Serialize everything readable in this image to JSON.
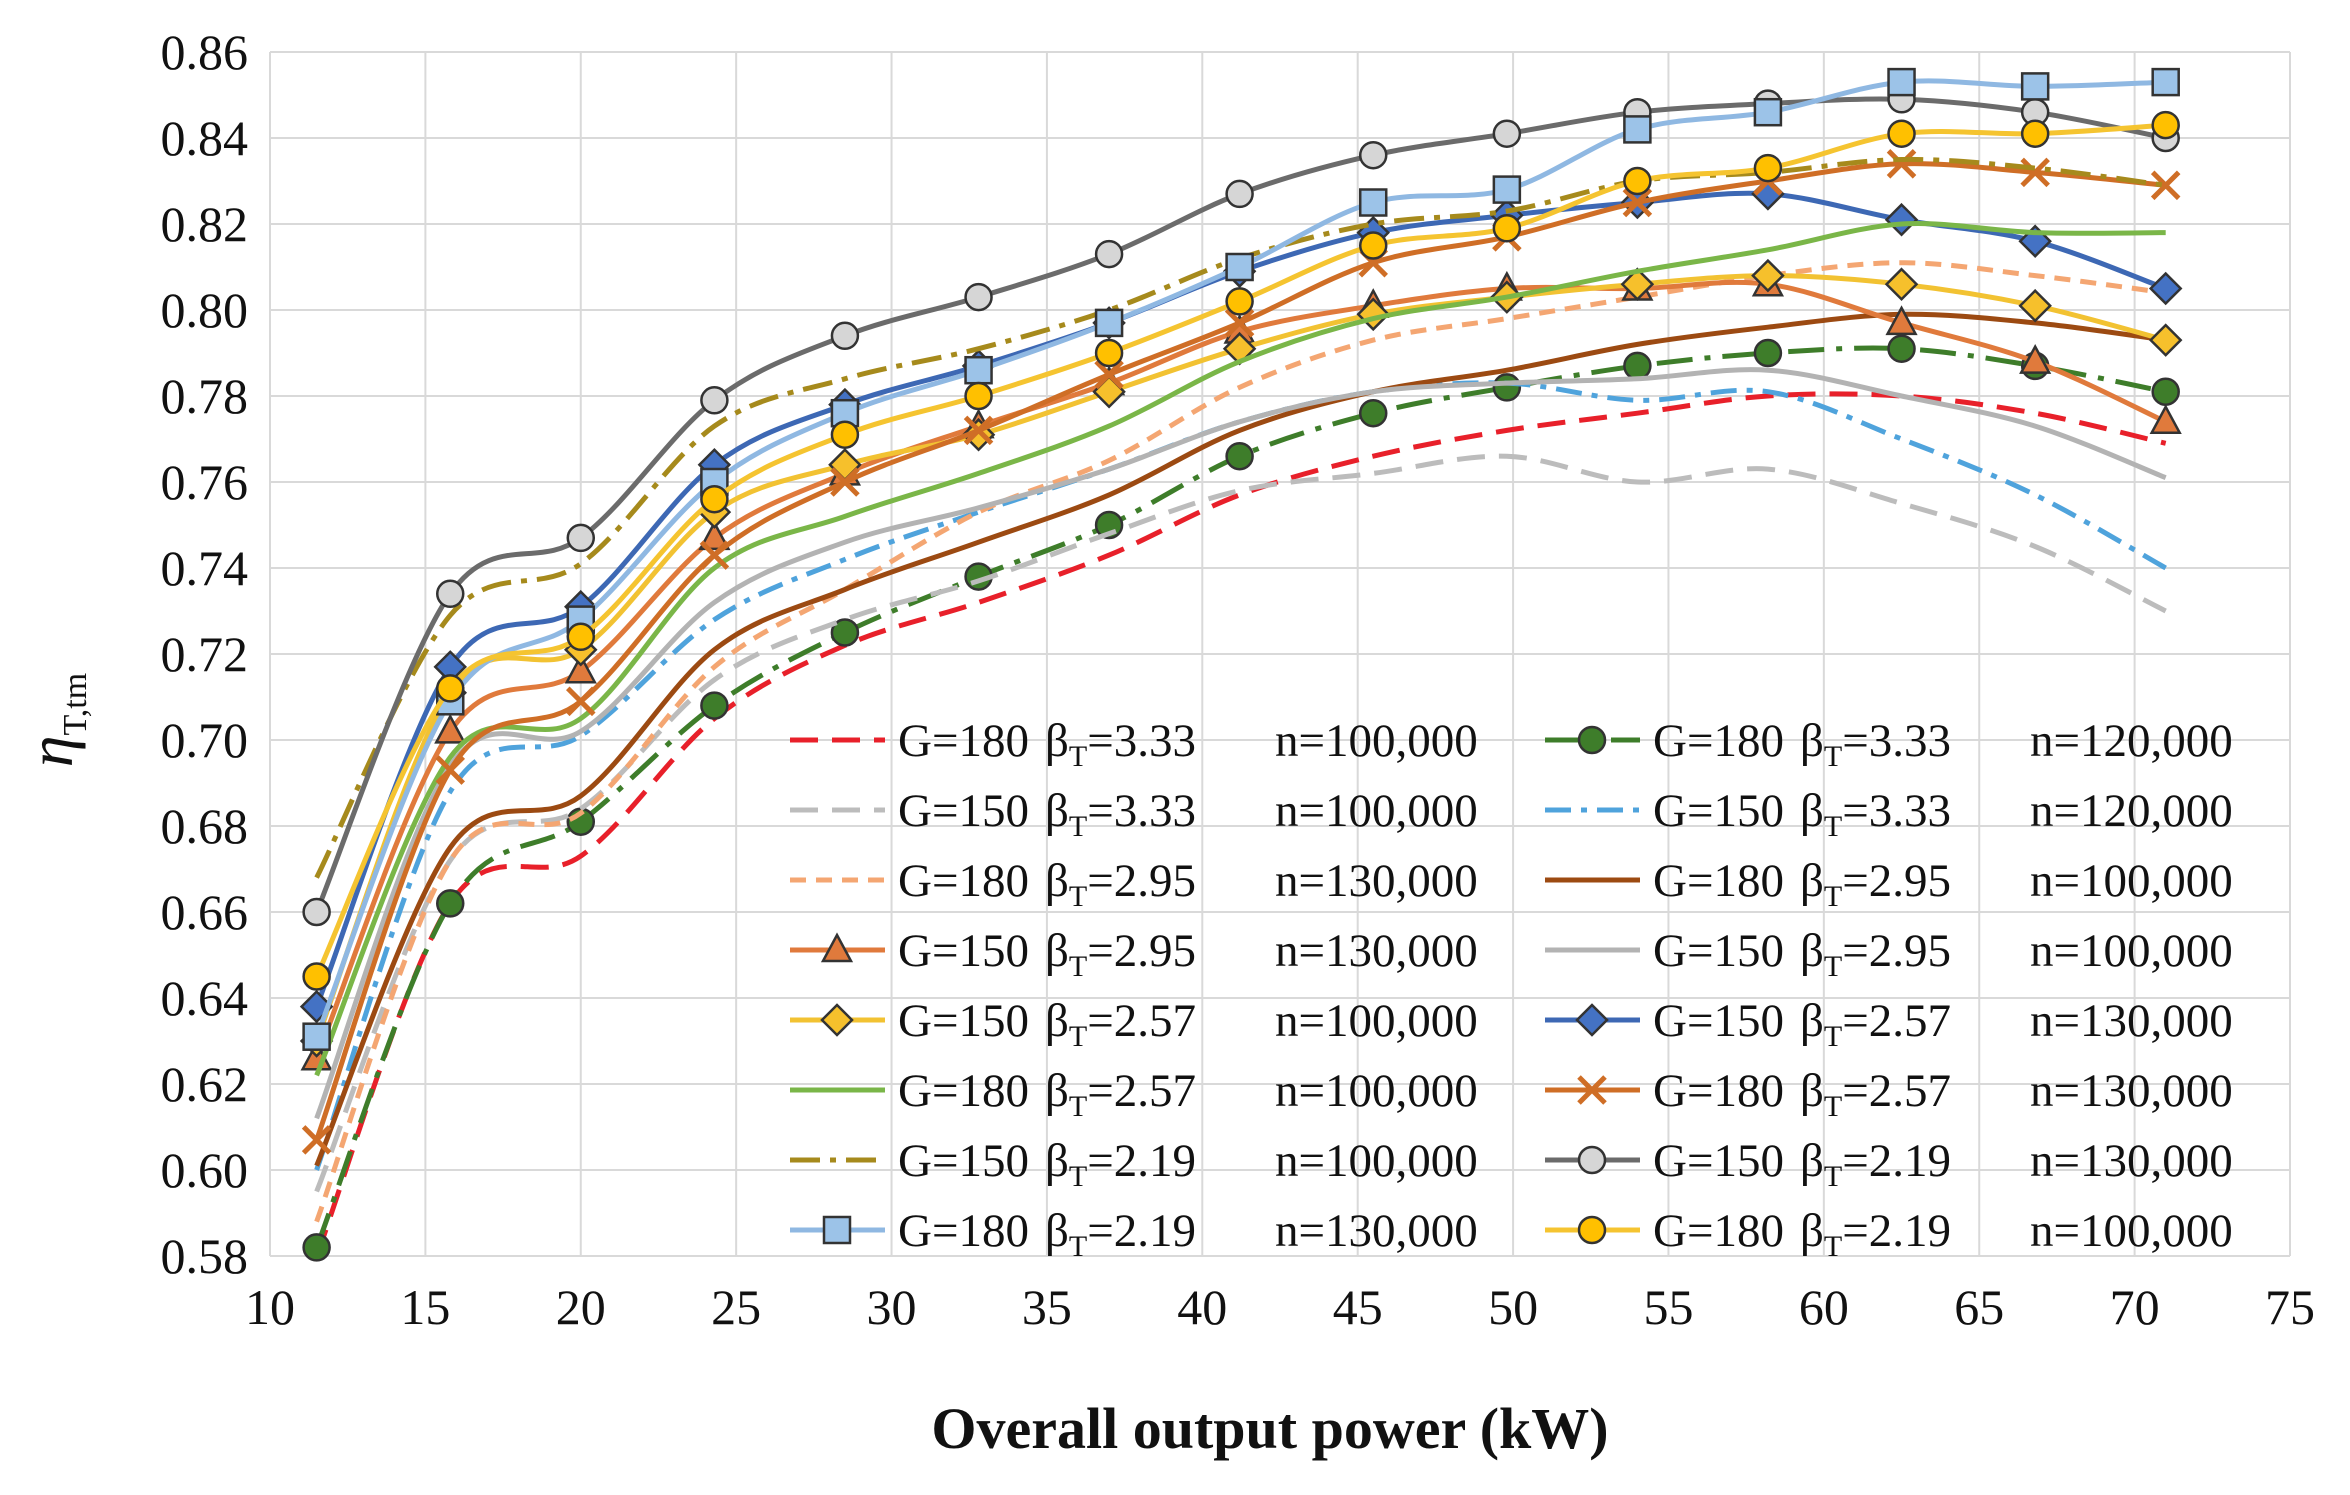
{
  "chart_data": {
    "type": "line",
    "xlabel": "Overall output power (kW)",
    "ylabel": "η",
    "ylabel_sub": "T,tm",
    "xlim": [
      10,
      75
    ],
    "ylim": [
      0.58,
      0.86
    ],
    "xticks": [
      "10",
      "15",
      "20",
      "25",
      "30",
      "35",
      "40",
      "45",
      "50",
      "55",
      "60",
      "65",
      "70",
      "75"
    ],
    "yticks": [
      "0.58",
      "0.60",
      "0.62",
      "0.64",
      "0.66",
      "0.68",
      "0.70",
      "0.72",
      "0.74",
      "0.76",
      "0.78",
      "0.80",
      "0.82",
      "0.84",
      "0.86"
    ],
    "x": [
      11.5,
      15.8,
      20.0,
      24.3,
      28.5,
      32.8,
      37.0,
      41.2,
      45.5,
      49.8,
      54.0,
      58.2,
      62.5,
      66.8,
      71.0
    ],
    "series": [
      {
        "name": "G=180 βT=3.33 n=100,000",
        "g": "G=180",
        "b": "=3.33",
        "n": "n=100,000",
        "color": "#e8202a",
        "dash": "28,14",
        "width": 5,
        "marker": "none",
        "values": [
          0.58,
          0.662,
          0.673,
          0.705,
          0.722,
          0.732,
          0.743,
          0.757,
          0.766,
          0.772,
          0.776,
          0.78,
          0.78,
          0.776,
          0.769
        ]
      },
      {
        "name": "G=180 βT=3.33 n=120,000",
        "g": "G=180",
        "b": "=3.33",
        "n": "n=120,000",
        "color": "#3e7d2a",
        "dash": "36,12,6,12",
        "width": 5,
        "marker": "circle",
        "mfill": "#3e7d2a",
        "values": [
          0.582,
          0.662,
          0.681,
          0.708,
          0.725,
          0.738,
          0.75,
          0.766,
          0.776,
          0.782,
          0.787,
          0.79,
          0.791,
          0.787,
          0.781
        ]
      },
      {
        "name": "G=150 βT=3.33 n=100,000",
        "g": "G=150",
        "b": "=3.33",
        "n": "n=100,000",
        "color": "#bcbcbc",
        "dash": "28,14",
        "width": 5,
        "marker": "none",
        "values": [
          0.595,
          0.672,
          0.684,
          0.714,
          0.728,
          0.737,
          0.748,
          0.758,
          0.762,
          0.766,
          0.76,
          0.763,
          0.755,
          0.745,
          0.73
        ]
      },
      {
        "name": "G=150 βT=3.33 n=120,000",
        "g": "G=150",
        "b": "=3.33",
        "n": "n=120,000",
        "color": "#4fa3dc",
        "dash": "26,10,6,10",
        "width": 5,
        "marker": "none",
        "values": [
          0.6,
          0.688,
          0.701,
          0.728,
          0.742,
          0.753,
          0.763,
          0.774,
          0.781,
          0.783,
          0.779,
          0.781,
          0.77,
          0.757,
          0.74
        ]
      },
      {
        "name": "G=180 βT=2.95 n=130,000",
        "g": "G=180",
        "b": "=2.95",
        "n": "n=130,000",
        "color": "#f4a672",
        "dash": "16,10",
        "width": 5,
        "marker": "none",
        "values": [
          0.588,
          0.672,
          0.683,
          0.717,
          0.735,
          0.753,
          0.765,
          0.782,
          0.793,
          0.798,
          0.803,
          0.808,
          0.811,
          0.808,
          0.804
        ]
      },
      {
        "name": "G=180 βT=2.95 n=100,000",
        "g": "G=180",
        "b": "=2.95",
        "n": "n=100,000",
        "color": "#9c4a12",
        "dash": "",
        "width": 5,
        "marker": "none",
        "values": [
          0.601,
          0.675,
          0.687,
          0.721,
          0.735,
          0.746,
          0.757,
          0.772,
          0.781,
          0.786,
          0.792,
          0.796,
          0.799,
          0.797,
          0.793
        ]
      },
      {
        "name": "G=150 βT=2.95 n=130,000",
        "g": "G=150",
        "b": "=2.95",
        "n": "n=130,000",
        "color": "#e07a3c",
        "dash": "",
        "width": 5,
        "marker": "triangle",
        "mfill": "#e07a3c",
        "values": [
          0.626,
          0.702,
          0.716,
          0.747,
          0.762,
          0.773,
          0.783,
          0.795,
          0.801,
          0.805,
          0.805,
          0.806,
          0.797,
          0.788,
          0.774
        ]
      },
      {
        "name": "G=150 βT=2.95 n=100,000",
        "g": "G=150",
        "b": "=2.95",
        "n": "n=100,000",
        "color": "#b3b3b3",
        "dash": "",
        "width": 5,
        "marker": "none",
        "values": [
          0.612,
          0.694,
          0.702,
          0.732,
          0.746,
          0.754,
          0.763,
          0.774,
          0.781,
          0.783,
          0.784,
          0.786,
          0.78,
          0.773,
          0.761
        ]
      },
      {
        "name": "G=150 βT=2.57 n=100,000",
        "g": "G=150",
        "b": "=2.57",
        "n": "n=100,000",
        "color": "#f2c232",
        "dash": "",
        "width": 5,
        "marker": "diamond",
        "mfill": "#f6c02c",
        "values": [
          0.63,
          0.711,
          0.721,
          0.753,
          0.764,
          0.771,
          0.781,
          0.791,
          0.799,
          0.803,
          0.806,
          0.808,
          0.806,
          0.801,
          0.793
        ]
      },
      {
        "name": "G=150 βT=2.57 n=130,000",
        "g": "G=150",
        "b": "=2.57",
        "n": "n=130,000",
        "color": "#3d68b4",
        "dash": "",
        "width": 5,
        "marker": "diamond",
        "mfill": "#4472c4",
        "values": [
          0.638,
          0.717,
          0.731,
          0.764,
          0.778,
          0.787,
          0.797,
          0.809,
          0.818,
          0.822,
          0.825,
          0.827,
          0.821,
          0.816,
          0.805
        ]
      },
      {
        "name": "G=180 βT=2.57 n=100,000",
        "g": "G=180",
        "b": "=2.57",
        "n": "n=100,000",
        "color": "#7ab648",
        "dash": "",
        "width": 5,
        "marker": "none",
        "values": [
          0.622,
          0.696,
          0.705,
          0.74,
          0.752,
          0.762,
          0.773,
          0.788,
          0.798,
          0.803,
          0.809,
          0.814,
          0.82,
          0.818,
          0.818
        ]
      },
      {
        "name": "G=180 βT=2.57 n=130,000",
        "g": "G=180",
        "b": "=2.57",
        "n": "n=130,000",
        "color": "#cf6e26",
        "dash": "",
        "width": 5,
        "marker": "x",
        "values": [
          0.607,
          0.693,
          0.709,
          0.743,
          0.76,
          0.772,
          0.785,
          0.797,
          0.811,
          0.817,
          0.825,
          0.83,
          0.834,
          0.832,
          0.829
        ]
      },
      {
        "name": "G=150 βT=2.19 n=100,000",
        "g": "G=150",
        "b": "=2.19",
        "n": "n=100,000",
        "color": "#a68a1c",
        "dash": "30,10,6,10",
        "width": 5,
        "marker": "none",
        "values": [
          0.668,
          0.729,
          0.741,
          0.773,
          0.784,
          0.791,
          0.8,
          0.812,
          0.82,
          0.823,
          0.83,
          0.832,
          0.835,
          0.833,
          0.829
        ]
      },
      {
        "name": "G=150 βT=2.19 n=130,000",
        "g": "G=150",
        "b": "=2.19",
        "n": "n=130,000",
        "color": "#6b6b6b",
        "dash": "",
        "width": 5,
        "marker": "circle",
        "mfill": "#d6d6d6",
        "values": [
          0.66,
          0.734,
          0.747,
          0.779,
          0.794,
          0.803,
          0.813,
          0.827,
          0.836,
          0.841,
          0.846,
          0.848,
          0.849,
          0.846,
          0.84
        ]
      },
      {
        "name": "G=180 βT=2.19 n=130,000",
        "g": "G=180",
        "b": "=2.19",
        "n": "n=130,000",
        "color": "#8fb8e2",
        "dash": "",
        "width": 5,
        "marker": "square",
        "mfill": "#9cc3e8",
        "values": [
          0.631,
          0.709,
          0.728,
          0.76,
          0.776,
          0.786,
          0.797,
          0.81,
          0.825,
          0.828,
          0.842,
          0.846,
          0.853,
          0.852,
          0.853
        ]
      },
      {
        "name": "G=180 βT=2.19 n=100,000",
        "g": "G=180",
        "b": "=2.19",
        "n": "n=100,000",
        "color": "#f5c430",
        "dash": "",
        "width": 5,
        "marker": "circle",
        "mfill": "#ffc000",
        "values": [
          0.645,
          0.712,
          0.724,
          0.756,
          0.771,
          0.78,
          0.79,
          0.802,
          0.815,
          0.819,
          0.83,
          0.833,
          0.841,
          0.841,
          0.843
        ]
      }
    ],
    "legend": "bottom-right, two columns",
    "grid": true
  }
}
